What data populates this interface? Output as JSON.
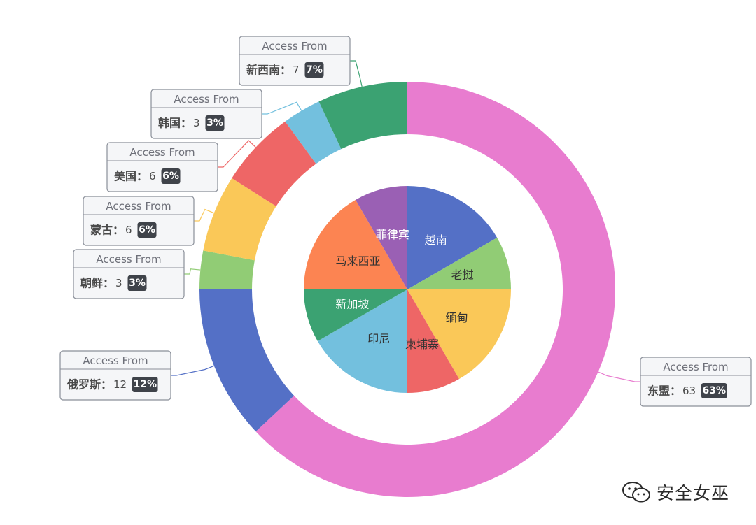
{
  "chart_data": {
    "type": "pie",
    "outer_ring": {
      "tooltip_title": "Access From",
      "slices": [
        {
          "name": "东盟",
          "value": 63,
          "percent": "63%",
          "color": "#e87ccf"
        },
        {
          "name": "俄罗斯",
          "value": 12,
          "percent": "12%",
          "color": "#5470c6"
        },
        {
          "name": "朝鲜",
          "value": 3,
          "percent": "3%",
          "color": "#91cc75"
        },
        {
          "name": "蒙古",
          "value": 6,
          "percent": "6%",
          "color": "#fac858"
        },
        {
          "name": "美国",
          "value": 6,
          "percent": "6%",
          "color": "#ee6666"
        },
        {
          "name": "韩国",
          "value": 3,
          "percent": "3%",
          "color": "#73c0de"
        },
        {
          "name": "新西南",
          "value": 7,
          "percent": "7%",
          "color": "#3ba272"
        }
      ]
    },
    "inner_pie": {
      "slices": [
        {
          "name": "越南",
          "value": 1,
          "color": "#5470c6",
          "label_color": "#ffffff"
        },
        {
          "name": "老挝",
          "value": 0.5,
          "color": "#91cc75",
          "label_color": "#333333"
        },
        {
          "name": "缅甸",
          "value": 1,
          "color": "#fac858",
          "label_color": "#333333"
        },
        {
          "name": "柬埔寨",
          "value": 0.5,
          "color": "#ee6666",
          "label_color": "#333333"
        },
        {
          "name": "印尼",
          "value": 1,
          "color": "#73c0de",
          "label_color": "#333333"
        },
        {
          "name": "新加坡",
          "value": 0.5,
          "color": "#3ba272",
          "label_color": "#ffffff"
        },
        {
          "name": "马来西亚",
          "value": 1,
          "color": "#fc8452",
          "label_color": "#333333"
        },
        {
          "name": "菲律宾",
          "value": 0.5,
          "color": "#9a60b4",
          "label_color": "#ffffff"
        }
      ]
    }
  },
  "watermark": {
    "text": "安全女巫",
    "icon": "wechat-icon"
  }
}
